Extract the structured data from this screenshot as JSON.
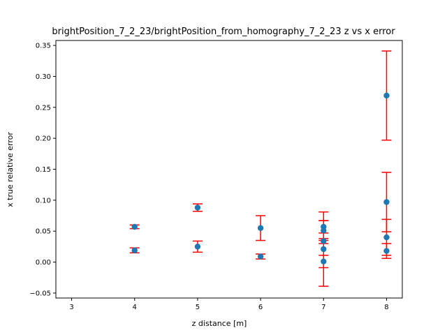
{
  "chart_data": {
    "type": "scatter",
    "title": "brightPosition_7_2_23/brightPosition_from_homography_7_2_23 z vs x error",
    "xlabel": "z distance [m]",
    "ylabel": "x true relative error",
    "xlim": [
      2.75,
      8.25
    ],
    "ylim": [
      -0.058,
      0.358
    ],
    "xticks": [
      3,
      4,
      5,
      6,
      7,
      8
    ],
    "yticks": [
      -0.05,
      0.0,
      0.05,
      0.1,
      0.15,
      0.2,
      0.25,
      0.3,
      0.35
    ],
    "ytick_labels": [
      "−0.05",
      "0.00",
      "0.05",
      "0.10",
      "0.15",
      "0.20",
      "0.25",
      "0.30",
      "0.35"
    ],
    "grid": false,
    "points": [
      {
        "x": 4,
        "y": 0.057,
        "err": 0.003
      },
      {
        "x": 4,
        "y": 0.019,
        "err": 0.004
      },
      {
        "x": 5,
        "y": 0.088,
        "err": 0.006
      },
      {
        "x": 5,
        "y": 0.025,
        "err": 0.009
      },
      {
        "x": 6,
        "y": 0.055,
        "err": 0.02
      },
      {
        "x": 6,
        "y": 0.009,
        "err": 0.004
      },
      {
        "x": 7,
        "y": 0.057,
        "err": 0.01
      },
      {
        "x": 7,
        "y": 0.051,
        "err": 0.016
      },
      {
        "x": 7,
        "y": 0.034,
        "err": 0.004
      },
      {
        "x": 7,
        "y": 0.021,
        "err": 0.06
      },
      {
        "x": 7,
        "y": 0.001,
        "err": 0.01
      },
      {
        "x": 8,
        "y": 0.269,
        "err": 0.072
      },
      {
        "x": 8,
        "y": 0.097,
        "err": 0.048
      },
      {
        "x": 8,
        "y": 0.04,
        "err": 0.029
      },
      {
        "x": 8,
        "y": 0.018,
        "err": 0.012
      }
    ],
    "marker_color": "#1f77b4",
    "errorbar_color": "#ff0000"
  }
}
